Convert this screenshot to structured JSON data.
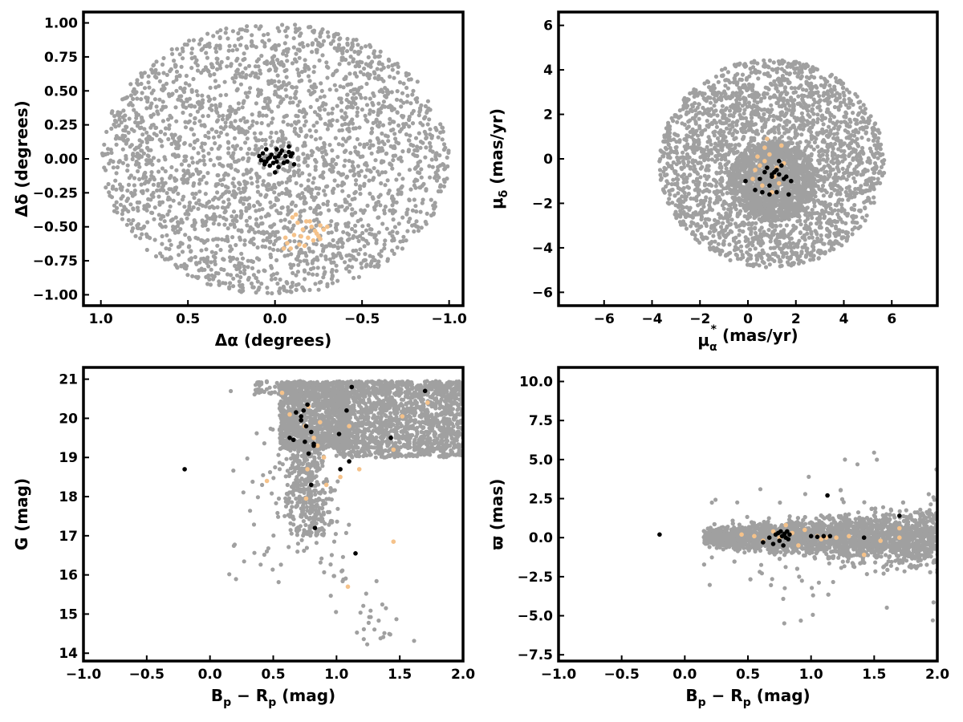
{
  "colors": {
    "field": "#a0a0a0",
    "candidate": "#f5c28a",
    "member": "#000000"
  },
  "chart_data": [
    {
      "id": "sky",
      "type": "scatter",
      "xlabel": "Δα (degrees)",
      "ylabel": "Δδ (degrees)",
      "xlim": [
        1.1,
        -1.08
      ],
      "ylim": [
        -1.08,
        1.08
      ],
      "x_reversed": true,
      "xticks": [
        1.0,
        0.5,
        0.0,
        -0.5,
        -1.0
      ],
      "xtick_labels": [
        "1.0",
        "0.5",
        "0.0",
        "−0.5",
        "−1.0"
      ],
      "yticks": [
        1.0,
        0.75,
        0.5,
        0.25,
        0.0,
        -0.25,
        -0.5,
        -0.75,
        -1.0
      ],
      "ytick_labels": [
        "1.00",
        "0.75",
        "0.50",
        "0.25",
        "0.00",
        "−0.25",
        "−0.50",
        "−0.75",
        "−1.00"
      ],
      "field_region": {
        "shape": "disk",
        "center": [
          0.0,
          0.0
        ],
        "radius": 1.0,
        "count": 2600
      },
      "series": [
        {
          "role": "candidate",
          "points": [
            [
              -0.28,
              -0.52
            ],
            [
              -0.26,
              -0.49
            ],
            [
              -0.24,
              -0.55
            ],
            [
              -0.22,
              -0.6
            ],
            [
              -0.21,
              -0.5
            ],
            [
              -0.19,
              -0.58
            ],
            [
              -0.18,
              -0.46
            ],
            [
              -0.16,
              -0.52
            ],
            [
              -0.14,
              -0.63
            ],
            [
              -0.13,
              -0.47
            ],
            [
              -0.11,
              -0.56
            ],
            [
              -0.09,
              -0.66
            ],
            [
              -0.07,
              -0.62
            ],
            [
              -0.05,
              -0.66
            ],
            [
              -0.12,
              -0.41
            ],
            [
              -0.25,
              -0.57
            ],
            [
              -0.17,
              -0.64
            ],
            [
              -0.23,
              -0.53
            ],
            [
              -0.2,
              -0.46
            ],
            [
              -0.15,
              -0.57
            ],
            [
              -0.1,
              -0.43
            ],
            [
              -0.06,
              -0.58
            ],
            [
              -0.26,
              -0.59
            ],
            [
              -0.3,
              -0.5
            ]
          ]
        },
        {
          "role": "member",
          "points": [
            [
              0.09,
              0.02
            ],
            [
              0.08,
              -0.01
            ],
            [
              0.07,
              0.04
            ],
            [
              0.06,
              -0.04
            ],
            [
              0.05,
              -0.02
            ],
            [
              0.04,
              0.0
            ],
            [
              0.03,
              -0.05
            ],
            [
              0.02,
              0.03
            ],
            [
              0.01,
              -0.03
            ],
            [
              0.0,
              0.01
            ],
            [
              -0.01,
              -0.02
            ],
            [
              -0.02,
              -0.06
            ],
            [
              -0.03,
              0.04
            ],
            [
              -0.04,
              0.06
            ],
            [
              -0.05,
              -0.03
            ],
            [
              -0.06,
              0.02
            ],
            [
              -0.07,
              -0.02
            ],
            [
              -0.08,
              0.05
            ],
            [
              -0.09,
              0.02
            ],
            [
              -0.1,
              0.04
            ],
            [
              -0.11,
              -0.04
            ],
            [
              -0.02,
              0.02
            ],
            [
              0.05,
              0.07
            ],
            [
              0.0,
              -0.1
            ],
            [
              -0.08,
              0.09
            ],
            [
              -0.01,
              0.07
            ],
            [
              0.06,
              -0.02
            ],
            [
              0.03,
              0.01
            ]
          ]
        }
      ]
    },
    {
      "id": "pm",
      "type": "scatter",
      "xlabel_main": "μ",
      "xlabel_sub": "α",
      "xlabel_sup": "*",
      "xlabel_unit": " (mas/yr)",
      "ylabel_main": "μ",
      "ylabel_sub": "δ",
      "ylabel_unit": " (mas/yr)",
      "xlim": [
        -7.9,
        7.9
      ],
      "ylim": [
        -6.6,
        6.6
      ],
      "xticks": [
        -6,
        -4,
        -2,
        0,
        2,
        4,
        6
      ],
      "xtick_labels": [
        "−6",
        "−4",
        "−2",
        "0",
        "2",
        "4",
        "6"
      ],
      "yticks": [
        6,
        4,
        2,
        0,
        -2,
        -4,
        -6
      ],
      "ytick_labels": [
        "6",
        "4",
        "2",
        "0",
        "−2",
        "−4",
        "−6"
      ],
      "field_region": {
        "shape": "disk",
        "center": [
          1.0,
          -0.2
        ],
        "radius": 4.7,
        "count": 2700,
        "core_center": [
          1.0,
          -1.0
        ],
        "core_radius": 1.8,
        "core_count": 1100
      },
      "series": [
        {
          "role": "candidate",
          "points": [
            [
              0.5,
              -0.3
            ],
            [
              0.7,
              -0.1
            ],
            [
              0.9,
              0.2
            ],
            [
              1.2,
              -0.4
            ],
            [
              1.4,
              0.6
            ],
            [
              0.3,
              -0.5
            ],
            [
              0.6,
              -1.2
            ],
            [
              1.0,
              -1.5
            ],
            [
              0.8,
              0.9
            ],
            [
              1.5,
              -0.2
            ],
            [
              0.2,
              -0.9
            ],
            [
              1.1,
              -0.8
            ],
            [
              0.4,
              0.1
            ],
            [
              1.3,
              -1.1
            ],
            [
              0.7,
              0.5
            ]
          ]
        },
        {
          "role": "member",
          "points": [
            [
              0.6,
              -1.5
            ],
            [
              0.8,
              -0.4
            ],
            [
              1.0,
              -0.8
            ],
            [
              1.2,
              -0.5
            ],
            [
              1.3,
              -0.1
            ],
            [
              1.5,
              -0.9
            ],
            [
              1.7,
              -1.6
            ],
            [
              0.3,
              -1.4
            ],
            [
              0.9,
              -1.2
            ],
            [
              1.1,
              -0.6
            ],
            [
              1.4,
              -0.3
            ],
            [
              1.0,
              -0.7
            ],
            [
              0.7,
              -0.6
            ],
            [
              1.8,
              -1.0
            ],
            [
              1.3,
              -0.7
            ],
            [
              1.6,
              -0.8
            ],
            [
              0.9,
              -1.6
            ],
            [
              -0.1,
              -1.0
            ],
            [
              1.2,
              -1.5
            ],
            [
              0.5,
              -0.9
            ]
          ]
        }
      ]
    },
    {
      "id": "cmd",
      "type": "scatter",
      "xlabel_main": "B",
      "xlabel_sub": "p",
      "xlabel_mid": " − R",
      "xlabel_sub2": "p",
      "xlabel_unit": " (mag)",
      "ylabel": "G (mag)",
      "xlim": [
        -1.0,
        2.0
      ],
      "ylim": [
        13.8,
        21.3
      ],
      "y_reversed": false,
      "xticks": [
        -1.0,
        -0.5,
        0.0,
        0.5,
        1.0,
        1.5,
        2.0
      ],
      "xtick_labels": [
        "−1.0",
        "−0.5",
        "0.0",
        "0.5",
        "1.0",
        "1.5",
        "2.0"
      ],
      "yticks": [
        21,
        20,
        19,
        18,
        17,
        16,
        15,
        14
      ],
      "ytick_labels": [
        "21",
        "20",
        "19",
        "18",
        "17",
        "16",
        "15",
        "14"
      ],
      "field_region": {
        "shape": "cmd",
        "count": 3400
      },
      "series": [
        {
          "role": "candidate",
          "points": [
            [
              0.57,
              20.65
            ],
            [
              0.63,
              20.1
            ],
            [
              0.75,
              19.8
            ],
            [
              0.78,
              20.3
            ],
            [
              0.85,
              19.3
            ],
            [
              0.87,
              19.9
            ],
            [
              0.82,
              19.5
            ],
            [
              0.77,
              18.7
            ],
            [
              0.92,
              18.3
            ],
            [
              1.03,
              18.5
            ],
            [
              1.1,
              19.8
            ],
            [
              1.18,
              18.7
            ],
            [
              1.45,
              19.2
            ],
            [
              1.52,
              20.05
            ],
            [
              1.72,
              20.4
            ],
            [
              0.45,
              18.4
            ],
            [
              0.76,
              17.95
            ],
            [
              1.45,
              16.85
            ],
            [
              1.09,
              15.7
            ],
            [
              0.9,
              19.0
            ]
          ]
        },
        {
          "role": "member",
          "points": [
            [
              -0.2,
              18.7
            ],
            [
              0.63,
              19.5
            ],
            [
              0.66,
              19.45
            ],
            [
              0.68,
              20.15
            ],
            [
              0.72,
              20.05
            ],
            [
              0.72,
              19.95
            ],
            [
              0.74,
              20.2
            ],
            [
              0.75,
              19.4
            ],
            [
              0.76,
              19.8
            ],
            [
              0.77,
              20.35
            ],
            [
              0.78,
              19.1
            ],
            [
              0.8,
              19.65
            ],
            [
              0.82,
              19.35
            ],
            [
              0.8,
              18.3
            ],
            [
              0.83,
              17.2
            ],
            [
              1.02,
              19.6
            ],
            [
              1.03,
              18.7
            ],
            [
              1.08,
              20.2
            ],
            [
              1.1,
              18.9
            ],
            [
              1.12,
              20.8
            ],
            [
              1.15,
              16.55
            ],
            [
              1.43,
              19.5
            ],
            [
              1.7,
              20.7
            ],
            [
              0.82,
              19.3
            ]
          ]
        }
      ]
    },
    {
      "id": "plx",
      "type": "scatter",
      "xlabel_main": "B",
      "xlabel_sub": "p",
      "xlabel_mid": " − R",
      "xlabel_sub2": "p",
      "xlabel_unit": " (mag)",
      "ylabel": "ϖ (mas)",
      "xlim": [
        -1.0,
        2.0
      ],
      "ylim": [
        -7.9,
        10.9
      ],
      "xticks": [
        -1.0,
        -0.5,
        0.0,
        0.5,
        1.0,
        1.5,
        2.0
      ],
      "xtick_labels": [
        "−1.0",
        "−0.5",
        "0.0",
        "0.5",
        "1.0",
        "1.5",
        "2.0"
      ],
      "yticks": [
        10.0,
        7.5,
        5.0,
        2.5,
        0.0,
        -2.5,
        -5.0,
        -7.5
      ],
      "ytick_labels": [
        "10.0",
        "7.5",
        "5.0",
        "2.5",
        "0.0",
        "−2.5",
        "−5.0",
        "−7.5"
      ],
      "field_region": {
        "shape": "band",
        "count": 3200
      },
      "series": [
        {
          "role": "candidate",
          "points": [
            [
              0.45,
              0.2
            ],
            [
              0.55,
              0.1
            ],
            [
              0.62,
              -0.2
            ],
            [
              0.7,
              0.4
            ],
            [
              0.75,
              0.0
            ],
            [
              0.8,
              0.8
            ],
            [
              0.85,
              0.3
            ],
            [
              0.9,
              -0.5
            ],
            [
              1.05,
              0.1
            ],
            [
              1.12,
              0.0
            ],
            [
              1.2,
              0.0
            ],
            [
              1.3,
              0.1
            ],
            [
              1.42,
              -1.1
            ],
            [
              1.55,
              -0.2
            ],
            [
              1.7,
              0.0
            ],
            [
              1.7,
              0.6
            ],
            [
              0.95,
              0.5
            ],
            [
              1.08,
              -0.1
            ]
          ]
        },
        {
          "role": "member",
          "points": [
            [
              -0.2,
              0.2
            ],
            [
              0.62,
              -0.3
            ],
            [
              0.67,
              0.0
            ],
            [
              0.7,
              -0.4
            ],
            [
              0.72,
              0.2
            ],
            [
              0.74,
              0.3
            ],
            [
              0.75,
              -0.2
            ],
            [
              0.76,
              0.4
            ],
            [
              0.77,
              0.1
            ],
            [
              0.78,
              -0.5
            ],
            [
              0.79,
              0.25
            ],
            [
              0.8,
              0.0
            ],
            [
              0.81,
              0.4
            ],
            [
              0.82,
              -0.1
            ],
            [
              0.83,
              0.2
            ],
            [
              1.0,
              0.1
            ],
            [
              1.05,
              0.05
            ],
            [
              1.1,
              0.1
            ],
            [
              1.13,
              2.7
            ],
            [
              1.15,
              0.1
            ],
            [
              1.42,
              0.0
            ],
            [
              1.7,
              1.4
            ]
          ]
        }
      ]
    }
  ]
}
